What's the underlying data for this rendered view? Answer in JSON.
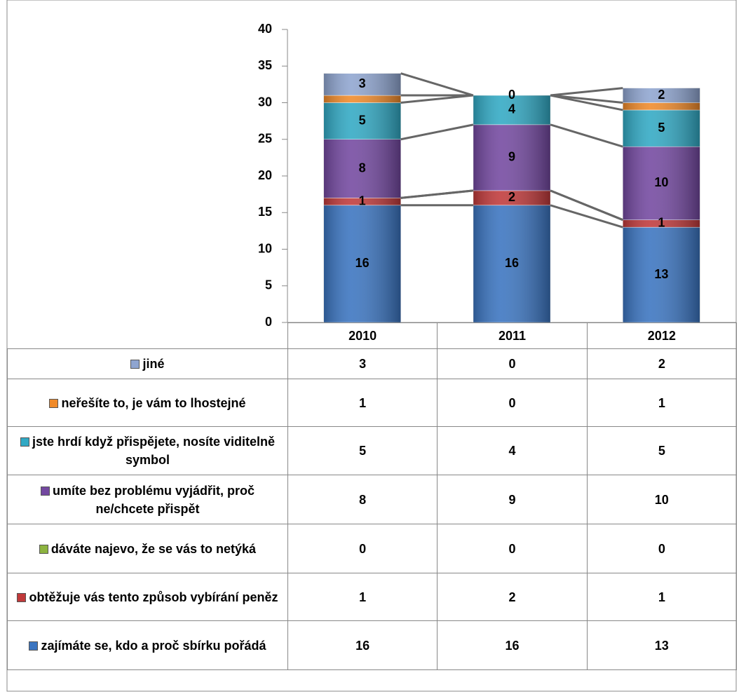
{
  "chart_data": {
    "type": "stacked_bar",
    "categories": [
      "2010",
      "2011",
      "2012"
    ],
    "series": [
      {
        "name": "zajímáte se, kdo a proč sbírku pořádá",
        "color": "#3a74c0",
        "values": [
          16,
          16,
          13
        ],
        "data_labels": true
      },
      {
        "name": "obtěžuje vás tento způsob vybírání peněz",
        "color": "#c0393a",
        "values": [
          1,
          2,
          1
        ],
        "data_labels": true
      },
      {
        "name": "dáváte najevo, že se vás to netýká",
        "color": "#8db440",
        "values": [
          0,
          0,
          0
        ],
        "data_labels": false
      },
      {
        "name": "umíte bez problému vyjádřit, proč ne/chcete přispět",
        "color": "#7348a0",
        "values": [
          8,
          9,
          10
        ],
        "data_labels": true
      },
      {
        "name": "jste hrdí když přispějete, nosíte viditelně symbol",
        "color": "#31a9c4",
        "values": [
          5,
          4,
          5
        ],
        "data_labels": true
      },
      {
        "name": "neřešíte to, je vám to lhostejné",
        "color": "#f08a2a",
        "values": [
          1,
          0,
          1
        ],
        "data_labels": false
      },
      {
        "name": "jiné",
        "color": "#8fa5d0",
        "values": [
          3,
          0,
          2
        ],
        "data_labels": true
      }
    ],
    "ylim": [
      0,
      40
    ],
    "yticks": [
      0,
      5,
      10,
      15,
      20,
      25,
      30,
      35,
      40
    ],
    "series_lines": true,
    "data_table": true
  }
}
